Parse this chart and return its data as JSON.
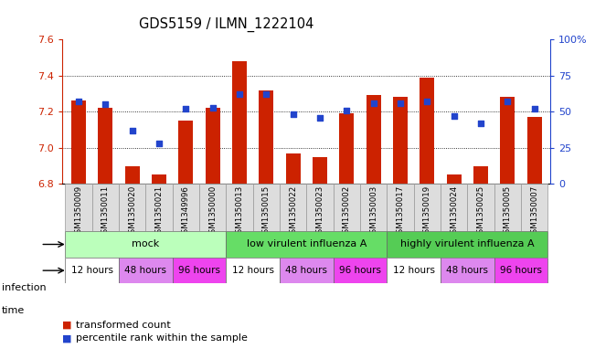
{
  "title": "GDS5159 / ILMN_1222104",
  "samples": [
    "GSM1350009",
    "GSM1350011",
    "GSM1350020",
    "GSM1350021",
    "GSM1349996",
    "GSM1350000",
    "GSM1350013",
    "GSM1350015",
    "GSM1350022",
    "GSM1350023",
    "GSM1350002",
    "GSM1350003",
    "GSM1350017",
    "GSM1350019",
    "GSM1350024",
    "GSM1350025",
    "GSM1350005",
    "GSM1350007"
  ],
  "bar_values": [
    7.26,
    7.22,
    6.9,
    6.85,
    7.15,
    7.22,
    7.48,
    7.32,
    6.97,
    6.95,
    7.19,
    7.29,
    7.28,
    7.39,
    6.85,
    6.9,
    7.28,
    7.17
  ],
  "dot_pct": [
    57,
    55,
    37,
    28,
    52,
    53,
    62,
    62,
    48,
    46,
    51,
    56,
    56,
    57,
    47,
    42,
    57,
    52
  ],
  "ymin": 6.8,
  "ymax": 7.6,
  "yticks": [
    6.8,
    7.0,
    7.2,
    7.4,
    7.6
  ],
  "right_yticks": [
    0,
    25,
    50,
    75,
    100
  ],
  "bar_color": "#cc2200",
  "dot_color": "#2244cc",
  "infection_groups": [
    {
      "label": "mock",
      "start": 0,
      "end": 6,
      "color": "#bbffbb"
    },
    {
      "label": "low virulent influenza A",
      "start": 6,
      "end": 12,
      "color": "#66dd66"
    },
    {
      "label": "highly virulent influenza A",
      "start": 12,
      "end": 18,
      "color": "#55cc55"
    }
  ],
  "time_spans": [
    {
      "label": "12 hours",
      "start": 0,
      "end": 2,
      "color": "#ffffff"
    },
    {
      "label": "48 hours",
      "start": 2,
      "end": 4,
      "color": "#dd88ee"
    },
    {
      "label": "96 hours",
      "start": 4,
      "end": 6,
      "color": "#ee44ee"
    },
    {
      "label": "12 hours",
      "start": 6,
      "end": 8,
      "color": "#ffffff"
    },
    {
      "label": "48 hours",
      "start": 8,
      "end": 10,
      "color": "#dd88ee"
    },
    {
      "label": "96 hours",
      "start": 10,
      "end": 12,
      "color": "#ee44ee"
    },
    {
      "label": "12 hours",
      "start": 12,
      "end": 14,
      "color": "#ffffff"
    },
    {
      "label": "48 hours",
      "start": 14,
      "end": 16,
      "color": "#dd88ee"
    },
    {
      "label": "96 hours",
      "start": 16,
      "end": 18,
      "color": "#ee44ee"
    }
  ],
  "legend_items": [
    {
      "label": "transformed count",
      "color": "#cc2200"
    },
    {
      "label": "percentile rank within the sample",
      "color": "#2244cc"
    }
  ]
}
